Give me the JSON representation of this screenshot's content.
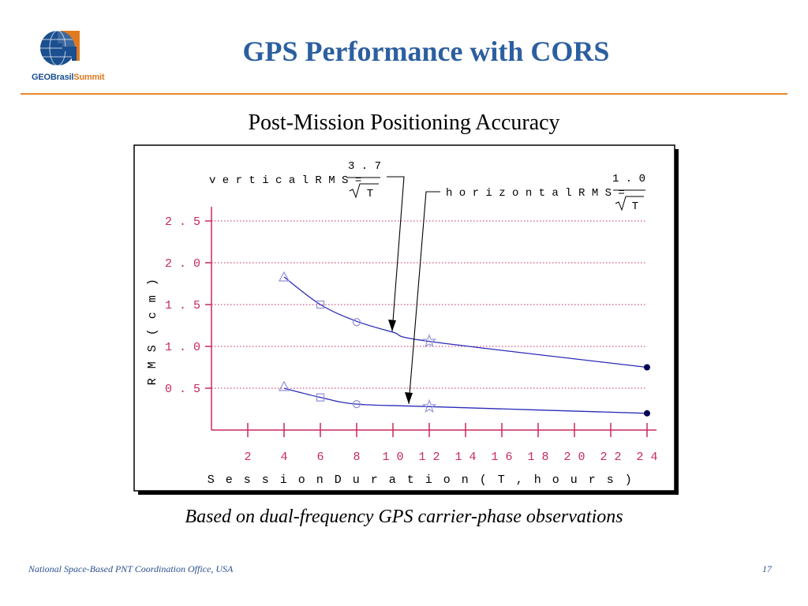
{
  "header": {
    "logo_text_geo": "GEOBrasil",
    "logo_text_summit": "Summit",
    "title": "GPS Performance with CORS"
  },
  "subtitle": "Post-Mission Positioning Accuracy",
  "caption": "Based on dual-frequency GPS carrier-phase observations",
  "footer": {
    "left": "National Space-Based PNT Coordination Office, USA",
    "page": "17"
  },
  "colors": {
    "title": "#2c5fa0",
    "rule": "#e8892f",
    "curve": "#2a2ab8",
    "marker": "#8f8fd8",
    "axis": "#c8285a",
    "grid": "#c8285a"
  },
  "chart_data": {
    "type": "line",
    "xlabel": "Session Duration (T,hours)",
    "ylabel": "RMS (cm)",
    "xlim": [
      0,
      24
    ],
    "ylim": [
      0,
      3.0
    ],
    "x_ticks": [
      2,
      4,
      6,
      8,
      10,
      12,
      14,
      16,
      18,
      20,
      22,
      24
    ],
    "y_ticks": [
      0.5,
      1.0,
      1.5,
      2.0,
      2.5
    ],
    "y_tick_labels": [
      "0.5",
      "1.0",
      "1.5",
      "2.0",
      "2.5"
    ],
    "grid": "horizontal dotted",
    "annotations": {
      "vertical": {
        "label": "vertical RMS=",
        "numerator": "3.7",
        "denominator": "T"
      },
      "horizontal": {
        "label": "horizontal RMS=",
        "numerator": "1.0",
        "denominator": "T"
      }
    },
    "series": [
      {
        "curve": [
          [
            4,
            1.83
          ],
          [
            6,
            1.5
          ],
          [
            8,
            1.3
          ],
          [
            10,
            1.17
          ],
          [
            12,
            1.06
          ],
          [
            24,
            0.75
          ]
        ],
        "points": [
          {
            "x": 4,
            "y": 1.83,
            "marker": "triangle"
          },
          {
            "x": 6,
            "y": 1.5,
            "marker": "square"
          },
          {
            "x": 8,
            "y": 1.29,
            "marker": "circle"
          },
          {
            "x": 12,
            "y": 1.06,
            "marker": "star"
          },
          {
            "x": 24,
            "y": 0.75,
            "marker": "dot"
          }
        ]
      },
      {
        "curve": [
          [
            4,
            0.5
          ],
          [
            6,
            0.39
          ],
          [
            8,
            0.31
          ],
          [
            12,
            0.28
          ],
          [
            24,
            0.2
          ]
        ],
        "points": [
          {
            "x": 4,
            "y": 0.52,
            "marker": "triangle"
          },
          {
            "x": 6,
            "y": 0.39,
            "marker": "square"
          },
          {
            "x": 8,
            "y": 0.31,
            "marker": "circle"
          },
          {
            "x": 12,
            "y": 0.28,
            "marker": "star"
          },
          {
            "x": 24,
            "y": 0.2,
            "marker": "dot"
          }
        ]
      }
    ]
  }
}
